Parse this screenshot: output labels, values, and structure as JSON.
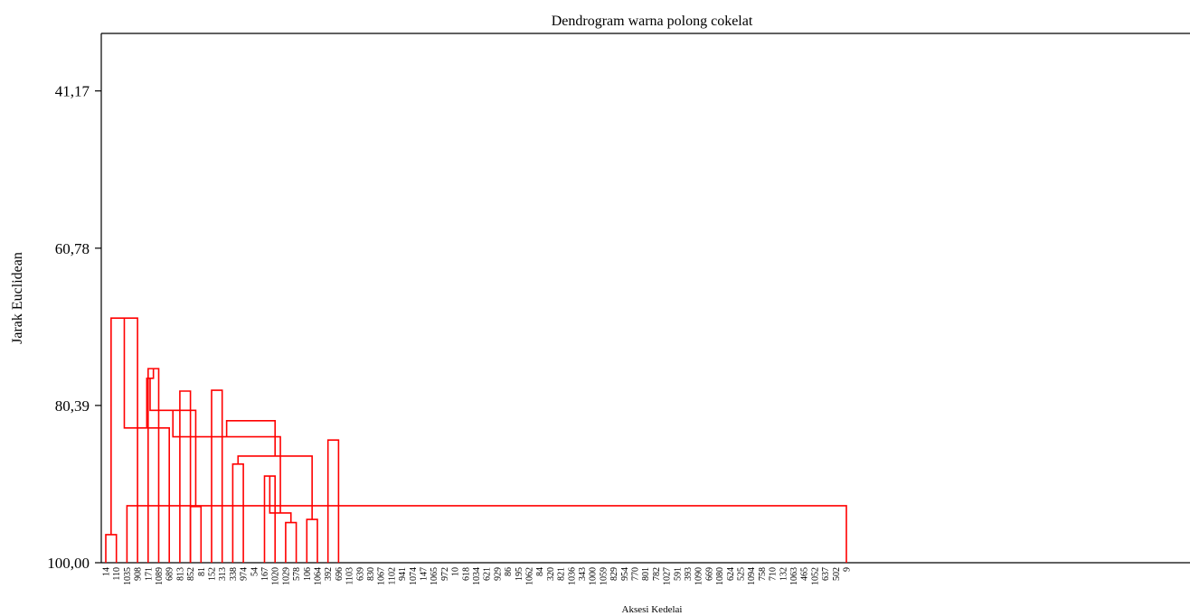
{
  "chart_data": {
    "type": "dendrogram",
    "title": "Dendrogram warna polong cokelat",
    "xlabel": "Aksesi Kedelai",
    "ylabel": "Jarak Euclidean",
    "ylim": [
      100,
      34
    ],
    "yticks": [
      "41,17",
      "60,78",
      "80,39",
      "100,00"
    ],
    "ytick_values": [
      41.17,
      60.78,
      80.39,
      100.0
    ],
    "leaves": [
      "14",
      "110",
      "1035",
      "908",
      "171",
      "1089",
      "689",
      "813",
      "852",
      "81",
      "152",
      "313",
      "338",
      "974",
      "54",
      "167",
      "1020",
      "1029",
      "578",
      "106",
      "1064",
      "392",
      "696",
      "1103",
      "639",
      "830",
      "1067",
      "1102",
      "941",
      "1074",
      "147",
      "1065",
      "972",
      "10",
      "618",
      "1034",
      "621",
      "929",
      "86",
      "195",
      "1062",
      "84",
      "320",
      "821",
      "1036",
      "343",
      "1000",
      "1059",
      "829",
      "954",
      "770",
      "801",
      "782",
      "1027",
      "591",
      "393",
      "1090",
      "669",
      "1080",
      "624",
      "525",
      "1094",
      "758",
      "710",
      "132",
      "1063",
      "465",
      "1052",
      "637",
      "502",
      "9"
    ],
    "cluster_colors": {
      "red": "#ff0000",
      "green": "#66cc66",
      "magenta": "#cc33cc",
      "orange": "#ff9900",
      "blue": "#0000cc",
      "black": "#000000"
    },
    "merges": [
      {
        "a": 0,
        "b": 1,
        "h": 96.5,
        "c": "red"
      },
      {
        "a": 70,
        "b": 2,
        "h": 92.9,
        "c": "red"
      },
      {
        "a": 71,
        "b": 3,
        "h": 69.5,
        "c": "red"
      },
      {
        "a": 4,
        "b": 5,
        "h": 75.8,
        "c": "red"
      },
      {
        "a": 73,
        "b": 6,
        "h": 83.2,
        "c": "red"
      },
      {
        "a": 7,
        "b": 8,
        "h": 78.6,
        "c": "red"
      },
      {
        "a": 74,
        "b": 75,
        "h": 77.0,
        "c": "red"
      },
      {
        "a": 8,
        "b": 9,
        "h": 93.0,
        "c": "red"
      },
      {
        "a": 77,
        "b": 78,
        "h": 81.0,
        "c": "red"
      },
      {
        "a": 10,
        "b": 11,
        "h": 78.5,
        "c": "red"
      },
      {
        "a": 80,
        "b": 81,
        "h": 72.8,
        "c": "red"
      },
      {
        "a": 72,
        "b": 82,
        "h": 66.2,
        "c": "red"
      },
      {
        "a": 12,
        "b": 13,
        "h": 87.7,
        "c": "red"
      },
      {
        "a": 15,
        "b": 16,
        "h": 89.2,
        "c": "red"
      },
      {
        "a": 17,
        "b": 18,
        "h": 95.0,
        "c": "red"
      },
      {
        "a": 19,
        "b": 20,
        "h": 94.6,
        "c": "red"
      },
      {
        "a": 84,
        "b": 85,
        "h": 93.8,
        "c": "red"
      },
      {
        "a": 83,
        "b": 86,
        "h": 86.7,
        "c": "red"
      },
      {
        "a": 79,
        "b": 87,
        "h": 84.3,
        "c": "red"
      },
      {
        "a": 21,
        "b": 22,
        "h": 84.7,
        "c": "red"
      },
      {
        "a": 88,
        "b": 89,
        "h": 82.3,
        "c": "red"
      }
    ]
  }
}
